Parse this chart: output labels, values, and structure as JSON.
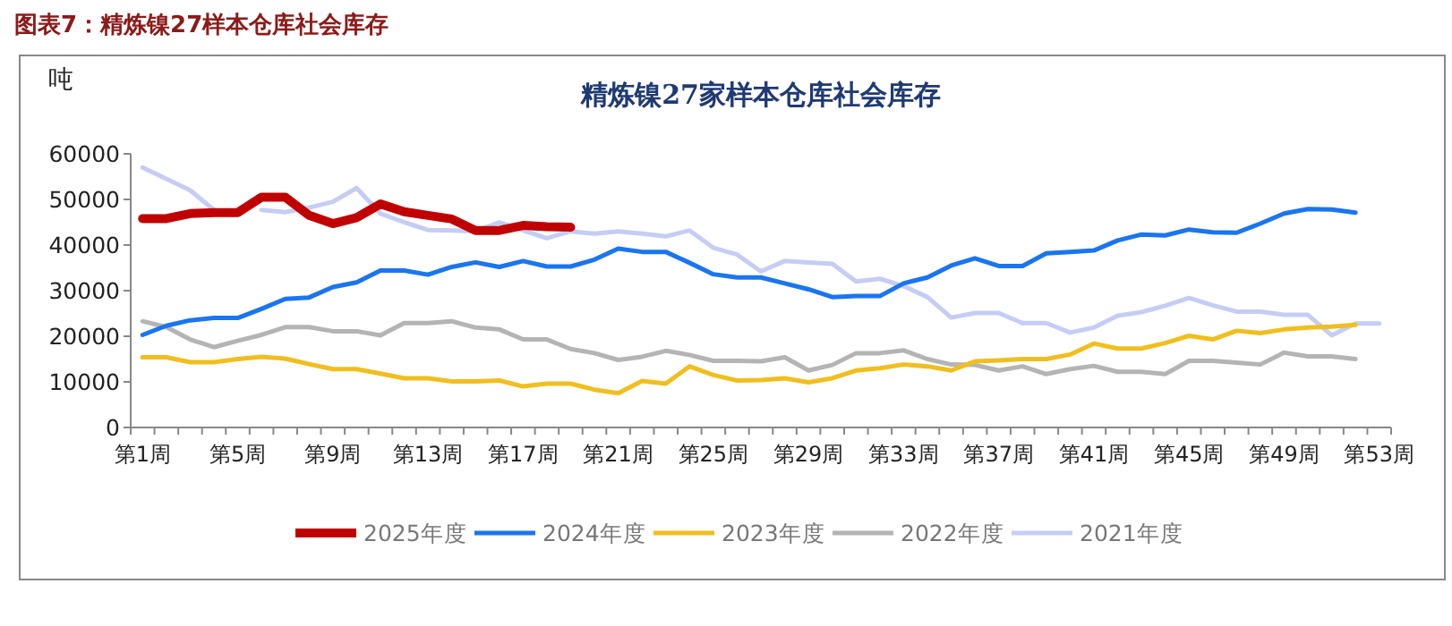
{
  "chart_data": {
    "type": "line",
    "title": "精炼镍27家样本仓库社会库存",
    "ylabel": "吨",
    "annotations": [
      "图表7：精炼镍27样本仓库社会库存"
    ],
    "categories": [
      "第1周",
      null,
      null,
      null,
      "第5周",
      null,
      null,
      null,
      "第9周",
      null,
      null,
      null,
      "第13周",
      null,
      null,
      null,
      "第17周",
      null,
      null,
      null,
      "第21周",
      null,
      null,
      null,
      "第25周",
      null,
      null,
      null,
      "第29周",
      null,
      null,
      null,
      "第33周",
      null,
      null,
      null,
      "第37周",
      null,
      null,
      null,
      "第41周",
      null,
      null,
      null,
      "第45周",
      null,
      null,
      null,
      "第49周",
      null,
      null,
      null,
      "第53周"
    ],
    "ylim": [
      0,
      60000
    ],
    "yticks": [
      0,
      10000,
      20000,
      30000,
      40000,
      50000,
      60000
    ],
    "grid": false,
    "legend": "bottom",
    "series": [
      {
        "name": "2025年度",
        "color": "#c00000",
        "values": [
          45800,
          45800,
          46900,
          47100,
          47100,
          50500,
          50500,
          46500,
          44700,
          46000,
          49000,
          47300,
          46500,
          45700,
          43200,
          43200,
          44300,
          44000,
          43900,
          null,
          null,
          null,
          null,
          null,
          null,
          null,
          null,
          null,
          null,
          null,
          null,
          null,
          null,
          null,
          null,
          null,
          null,
          null,
          null,
          null,
          null,
          null,
          null,
          null,
          null,
          null,
          null,
          null,
          null,
          null,
          null,
          null,
          null
        ]
      },
      {
        "name": "2024年度",
        "color": "#1a75f0",
        "values": [
          20300,
          22300,
          23500,
          24000,
          24000,
          26000,
          28200,
          28500,
          30800,
          31800,
          34400,
          34400,
          33500,
          35200,
          36200,
          35200,
          36500,
          35300,
          35300,
          36800,
          39200,
          38500,
          38500,
          36100,
          33600,
          32900,
          32900,
          31600,
          30300,
          28600,
          28800,
          28800,
          31600,
          32900,
          35500,
          37100,
          35400,
          35400,
          38200,
          38500,
          38800,
          41000,
          42300,
          42100,
          43400,
          42800,
          42700,
          44700,
          46900,
          47900,
          47800,
          47100,
          null
        ]
      },
      {
        "name": "2023年度",
        "color": "#f0be1e",
        "values": [
          15400,
          15400,
          14300,
          14300,
          15000,
          15500,
          15100,
          13900,
          12800,
          12800,
          11800,
          10800,
          10800,
          10100,
          10100,
          10300,
          9000,
          9600,
          9600,
          8300,
          7500,
          10200,
          9600,
          13400,
          11500,
          10300,
          10400,
          10800,
          9900,
          10800,
          12500,
          13000,
          13800,
          13400,
          12500,
          14500,
          14700,
          15000,
          15000,
          16000,
          18400,
          17300,
          17300,
          18500,
          20100,
          19300,
          21200,
          20700,
          21500,
          21900,
          22100,
          22500,
          null
        ]
      },
      {
        "name": "2022年度",
        "color": "#b4b4b4",
        "values": [
          23300,
          22000,
          19300,
          17600,
          19000,
          20300,
          22000,
          22000,
          21100,
          21100,
          20200,
          22900,
          22900,
          23300,
          21900,
          21500,
          19300,
          19300,
          17200,
          16300,
          14800,
          15500,
          16800,
          15900,
          14600,
          14600,
          14500,
          15400,
          12500,
          13700,
          16300,
          16300,
          16900,
          15000,
          13800,
          13700,
          12500,
          13400,
          11700,
          12800,
          13500,
          12200,
          12200,
          11700,
          14600,
          14600,
          14200,
          13800,
          16400,
          15600,
          15600,
          15000,
          null
        ]
      },
      {
        "name": "2021年度",
        "color": "#c5cdf5",
        "values": [
          57000,
          54500,
          52000,
          47700,
          null,
          47700,
          47200,
          48200,
          49500,
          52500,
          46900,
          45000,
          43300,
          43200,
          43000,
          45000,
          43200,
          41500,
          43000,
          42500,
          43000,
          42500,
          41900,
          43200,
          39400,
          37900,
          34200,
          36500,
          36200,
          35900,
          32000,
          32600,
          31000,
          28600,
          24100,
          25100,
          25100,
          22900,
          22900,
          20800,
          21900,
          24500,
          25300,
          26700,
          28400,
          26800,
          25400,
          25400,
          24700,
          24700,
          20200,
          22800,
          22800
        ]
      }
    ]
  }
}
